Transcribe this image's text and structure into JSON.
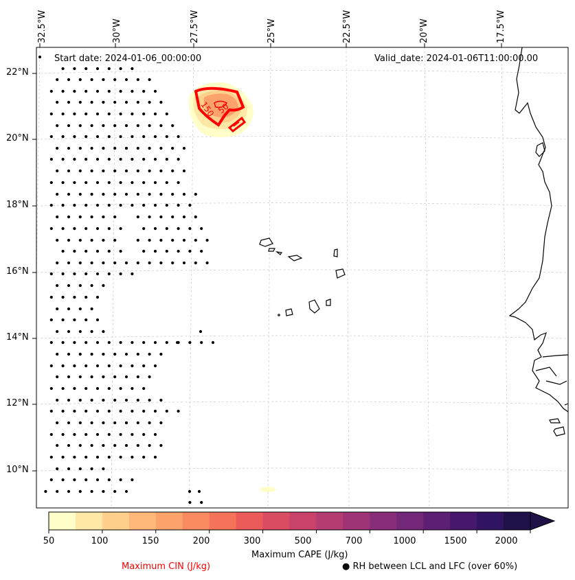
{
  "map": {
    "start_date": "Start date: 2024-01-06_00:00:00",
    "valid_date": "Valid_date: 2024-01-06T11:00:00.00",
    "lon_labels": [
      "32.5°W",
      "30°W",
      "27.5°W",
      "25°W",
      "22.5°W",
      "20°W",
      "17.5°W"
    ],
    "lat_labels": [
      "22°N",
      "20°N",
      "18°N",
      "16°N",
      "14°N",
      "12°N",
      "10°N"
    ],
    "contour_labels": [
      "150",
      "50"
    ]
  },
  "colorbar": {
    "title": "Maximum CAPE (J/kg)",
    "ticks": [
      "50",
      "100",
      "150",
      "200",
      "300",
      "500",
      "700",
      "1000",
      "1500",
      "2000"
    ],
    "colors": [
      "#fffec8",
      "#fee8a6",
      "#fed08c",
      "#fdb87a",
      "#fca26b",
      "#fa8a5f",
      "#f57459",
      "#ea5b5a",
      "#da4c62",
      "#c8426a",
      "#b33c71",
      "#9e3475",
      "#882d77",
      "#732778",
      "#5c1f73",
      "#46186b",
      "#301461",
      "#1d1147"
    ],
    "extend_color": "#1d1147"
  },
  "legend": {
    "cin_label": "Maximum CIN (J/kg)",
    "cin_color": "#ff0000",
    "rh_label": "RH between LCL and LFC (over 60%)",
    "rh_marker": "●"
  }
}
